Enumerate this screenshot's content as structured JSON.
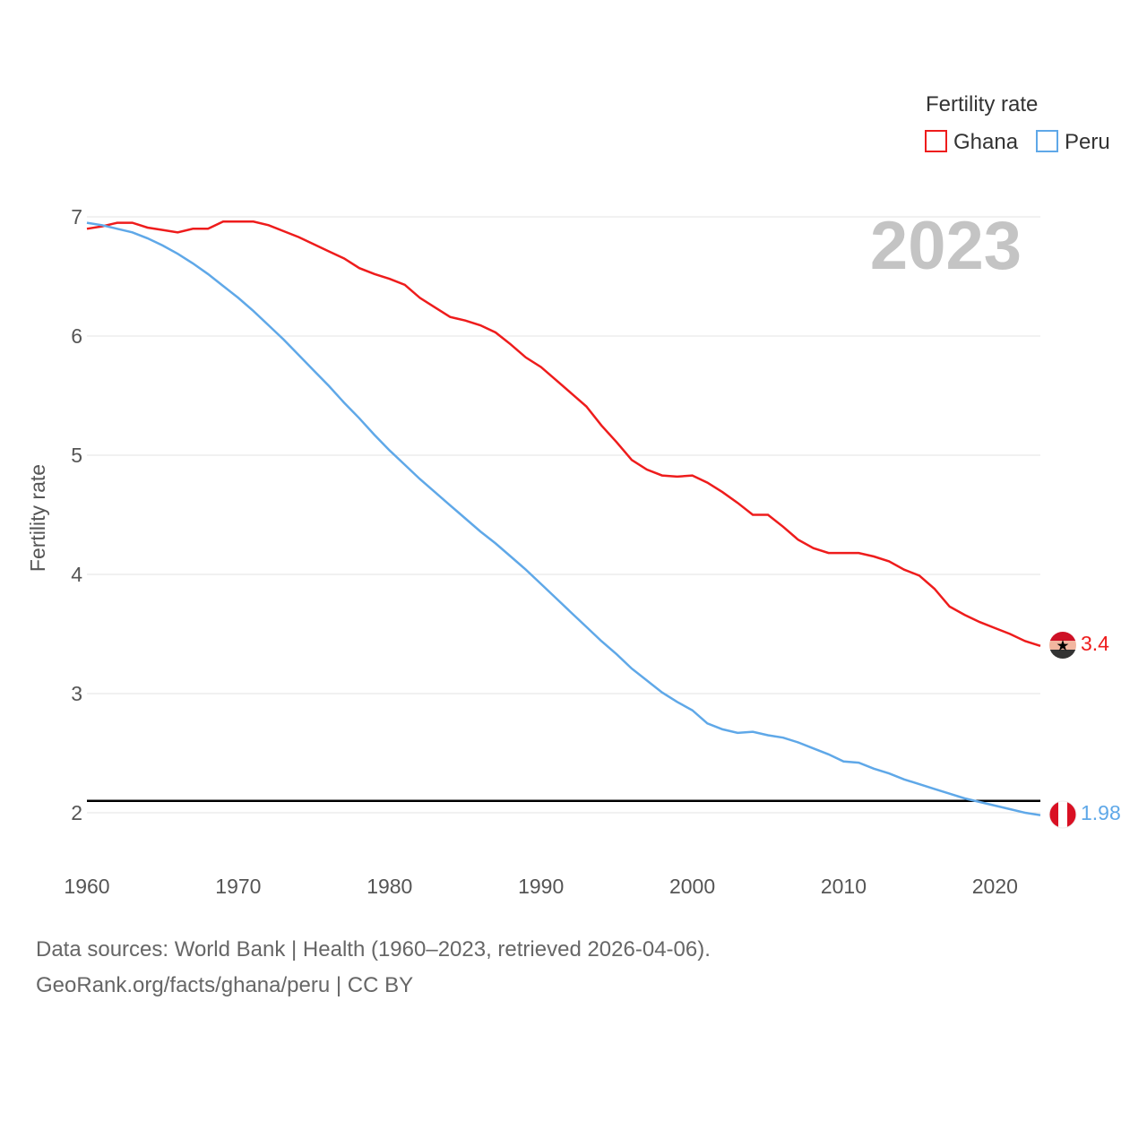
{
  "chart_data": {
    "type": "line",
    "legend_title": "Fertility rate",
    "ylabel": "Fertility rate",
    "current_year_label": "2023",
    "xlim": [
      1960,
      2023
    ],
    "ylim": [
      1.6,
      7.3
    ],
    "y_ticks": [
      2,
      3,
      4,
      5,
      6,
      7
    ],
    "x_ticks": [
      1960,
      1970,
      1980,
      1990,
      2000,
      2010,
      2020
    ],
    "x_tick_labels": [
      "1960",
      "1970",
      "1980",
      "1990",
      "2000",
      "2010",
      "2020"
    ],
    "y_tick_labels": [
      "2",
      "3",
      "4",
      "5",
      "6",
      "7"
    ],
    "reference_line": 2.1,
    "x": [
      1960,
      1961,
      1962,
      1963,
      1964,
      1965,
      1966,
      1967,
      1968,
      1969,
      1970,
      1971,
      1972,
      1973,
      1974,
      1975,
      1976,
      1977,
      1978,
      1979,
      1980,
      1981,
      1982,
      1983,
      1984,
      1985,
      1986,
      1987,
      1988,
      1989,
      1990,
      1991,
      1992,
      1993,
      1994,
      1995,
      1996,
      1997,
      1998,
      1999,
      2000,
      2001,
      2002,
      2003,
      2004,
      2005,
      2006,
      2007,
      2008,
      2009,
      2010,
      2011,
      2012,
      2013,
      2014,
      2015,
      2016,
      2017,
      2018,
      2019,
      2020,
      2021,
      2022,
      2023
    ],
    "series": [
      {
        "name": "Ghana",
        "color": "#ee1c1c",
        "end_label": "3.4",
        "values": [
          6.9,
          6.92,
          6.95,
          6.95,
          6.91,
          6.89,
          6.87,
          6.9,
          6.9,
          6.96,
          6.96,
          6.96,
          6.93,
          6.88,
          6.83,
          6.77,
          6.71,
          6.65,
          6.57,
          6.52,
          6.48,
          6.43,
          6.32,
          6.24,
          6.16,
          6.13,
          6.09,
          6.03,
          5.93,
          5.82,
          5.74,
          5.63,
          5.52,
          5.41,
          5.25,
          5.11,
          4.96,
          4.88,
          4.83,
          4.82,
          4.83,
          4.77,
          4.69,
          4.6,
          4.5,
          4.5,
          4.4,
          4.29,
          4.22,
          4.18,
          4.18,
          4.18,
          4.15,
          4.11,
          4.04,
          3.99,
          3.88,
          3.73,
          3.66,
          3.6,
          3.55,
          3.5,
          3.44,
          3.4
        ]
      },
      {
        "name": "Peru",
        "color": "#5fa8e8",
        "end_label": "1.98",
        "values": [
          6.95,
          6.93,
          6.9,
          6.87,
          6.82,
          6.76,
          6.69,
          6.61,
          6.52,
          6.42,
          6.32,
          6.21,
          6.09,
          5.97,
          5.84,
          5.71,
          5.58,
          5.44,
          5.31,
          5.17,
          5.04,
          4.92,
          4.8,
          4.69,
          4.58,
          4.47,
          4.36,
          4.26,
          4.15,
          4.04,
          3.92,
          3.8,
          3.68,
          3.56,
          3.44,
          3.33,
          3.21,
          3.11,
          3.01,
          2.93,
          2.86,
          2.75,
          2.7,
          2.67,
          2.68,
          2.65,
          2.63,
          2.59,
          2.54,
          2.49,
          2.43,
          2.42,
          2.37,
          2.33,
          2.28,
          2.24,
          2.2,
          2.16,
          2.12,
          2.09,
          2.06,
          2.03,
          2.0,
          1.98
        ]
      }
    ]
  },
  "source": {
    "line1": "Data sources: World Bank | Health (1960–2023, retrieved 2026-04-06).",
    "line2": "GeoRank.org/facts/ghana/peru | CC BY"
  }
}
